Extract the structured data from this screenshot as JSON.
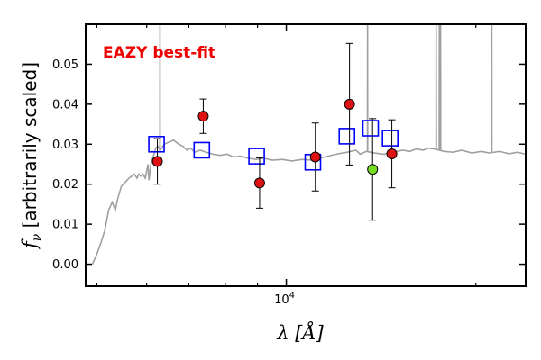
{
  "chart_data": {
    "type": "scatter",
    "title": "",
    "annotation": "EAZY best-fit",
    "xlabel": "λ [Å]",
    "ylabel": "f_ν [arbitrarily scaled]",
    "xscale": "log",
    "xlim": [
      4800,
      24000
    ],
    "ylim": [
      -0.0055,
      0.06
    ],
    "yticks": [
      {
        "value": 0.0,
        "label": "0.00"
      },
      {
        "value": 0.01,
        "label": "0.01"
      },
      {
        "value": 0.02,
        "label": "0.02"
      },
      {
        "value": 0.03,
        "label": "0.03"
      },
      {
        "value": 0.04,
        "label": "0.04"
      },
      {
        "value": 0.05,
        "label": "0.05"
      }
    ],
    "xticks_major": [
      {
        "value": 10000,
        "label": "10^4"
      }
    ],
    "xticks_minor": [
      5000,
      6000,
      7000,
      8000,
      9000,
      20000
    ],
    "grid": false,
    "colors": {
      "sed": "#a0a0a0",
      "model": "#0000ff",
      "observed": "#dd1111",
      "highlight": "#77dd22",
      "annotation": "#ee0000"
    },
    "series": [
      {
        "role": "model-template",
        "points": [
          [
            4920,
            0.0
          ],
          [
            5000,
            0.0025
          ],
          [
            5080,
            0.0055
          ],
          [
            5150,
            0.0085
          ],
          [
            5220,
            0.0135
          ],
          [
            5290,
            0.0155
          ],
          [
            5350,
            0.0135
          ],
          [
            5400,
            0.0165
          ],
          [
            5470,
            0.0195
          ],
          [
            5550,
            0.0205
          ],
          [
            5620,
            0.0215
          ],
          [
            5680,
            0.022
          ],
          [
            5740,
            0.0225
          ],
          [
            5790,
            0.0215
          ],
          [
            5830,
            0.0225
          ],
          [
            5880,
            0.022
          ],
          [
            5920,
            0.0225
          ],
          [
            5970,
            0.0215
          ],
          [
            6030,
            0.025
          ],
          [
            6050,
            0.021
          ],
          [
            6100,
            0.0255
          ],
          [
            6150,
            0.027
          ],
          [
            6200,
            0.029
          ],
          [
            6250,
            0.0295
          ],
          [
            6300,
            0.0285
          ],
          [
            6400,
            0.03
          ],
          [
            6500,
            0.0305
          ],
          [
            6620,
            0.031
          ],
          [
            6750,
            0.03
          ],
          [
            6850,
            0.0295
          ],
          [
            6950,
            0.0285
          ],
          [
            7050,
            0.029
          ],
          [
            7150,
            0.028
          ],
          [
            7300,
            0.0285
          ],
          [
            7450,
            0.028
          ],
          [
            7650,
            0.0275
          ],
          [
            7850,
            0.0272
          ],
          [
            8050,
            0.0275
          ],
          [
            8250,
            0.0268
          ],
          [
            8450,
            0.027
          ],
          [
            8700,
            0.0265
          ],
          [
            8950,
            0.0262
          ],
          [
            9200,
            0.0265
          ],
          [
            9500,
            0.026
          ],
          [
            9850,
            0.0262
          ],
          [
            10200,
            0.0258
          ],
          [
            10600,
            0.0262
          ],
          [
            11000,
            0.026
          ],
          [
            11500,
            0.0268
          ],
          [
            12000,
            0.0275
          ],
          [
            12500,
            0.028
          ],
          [
            12900,
            0.0285
          ],
          [
            13100,
            0.0275
          ],
          [
            13400,
            0.0282
          ],
          [
            13800,
            0.0278
          ],
          [
            14300,
            0.0275
          ],
          [
            14800,
            0.028
          ],
          [
            15300,
            0.0285
          ],
          [
            15700,
            0.0282
          ],
          [
            16100,
            0.0288
          ],
          [
            16500,
            0.0285
          ],
          [
            16800,
            0.029
          ],
          [
            17200,
            0.0288
          ],
          [
            17800,
            0.0282
          ],
          [
            18400,
            0.028
          ],
          [
            19000,
            0.0285
          ],
          [
            19700,
            0.0278
          ],
          [
            20400,
            0.0282
          ],
          [
            21000,
            0.0278
          ],
          [
            21800,
            0.0282
          ],
          [
            22600,
            0.0276
          ],
          [
            23300,
            0.028
          ],
          [
            24000,
            0.0275
          ]
        ],
        "emission_lines": [
          {
            "x": 6300,
            "peak": 0.06
          },
          {
            "x": 13460,
            "peak": 0.06
          },
          {
            "x": 17300,
            "peak": 0.06
          },
          {
            "x": 17500,
            "peak": 0.06
          },
          {
            "x": 17580,
            "peak": 0.06
          },
          {
            "x": 21200,
            "peak": 0.06
          }
        ]
      },
      {
        "role": "model-photometry",
        "marker": "open-square",
        "points": [
          [
            6220,
            0.03
          ],
          [
            7340,
            0.0285
          ],
          [
            8970,
            0.027
          ],
          [
            11020,
            0.0255
          ],
          [
            12480,
            0.032
          ],
          [
            13610,
            0.034
          ],
          [
            14620,
            0.0315
          ]
        ]
      },
      {
        "role": "observed-photometry",
        "marker": "filled-circle",
        "points": [
          {
            "x": 6240,
            "y": 0.0257,
            "yerr_low": 0.0057,
            "yerr_high": 0.0057
          },
          {
            "x": 7380,
            "y": 0.037,
            "yerr_low": 0.0043,
            "yerr_high": 0.0043
          },
          {
            "x": 9070,
            "y": 0.0203,
            "yerr_low": 0.0063,
            "yerr_high": 0.0063
          },
          {
            "x": 11120,
            "y": 0.0268,
            "yerr_low": 0.0085,
            "yerr_high": 0.0085
          },
          {
            "x": 12600,
            "y": 0.04,
            "yerr_low": 0.0152,
            "yerr_high": 0.0152
          },
          {
            "x": 14710,
            "y": 0.0276,
            "yerr_low": 0.0085,
            "yerr_high": 0.0085
          }
        ]
      },
      {
        "role": "observed-photometry-highlight",
        "marker": "filled-circle",
        "points": [
          {
            "x": 13710,
            "y": 0.0237,
            "yerr_low": 0.0127,
            "yerr_high": 0.0127
          }
        ]
      }
    ]
  }
}
